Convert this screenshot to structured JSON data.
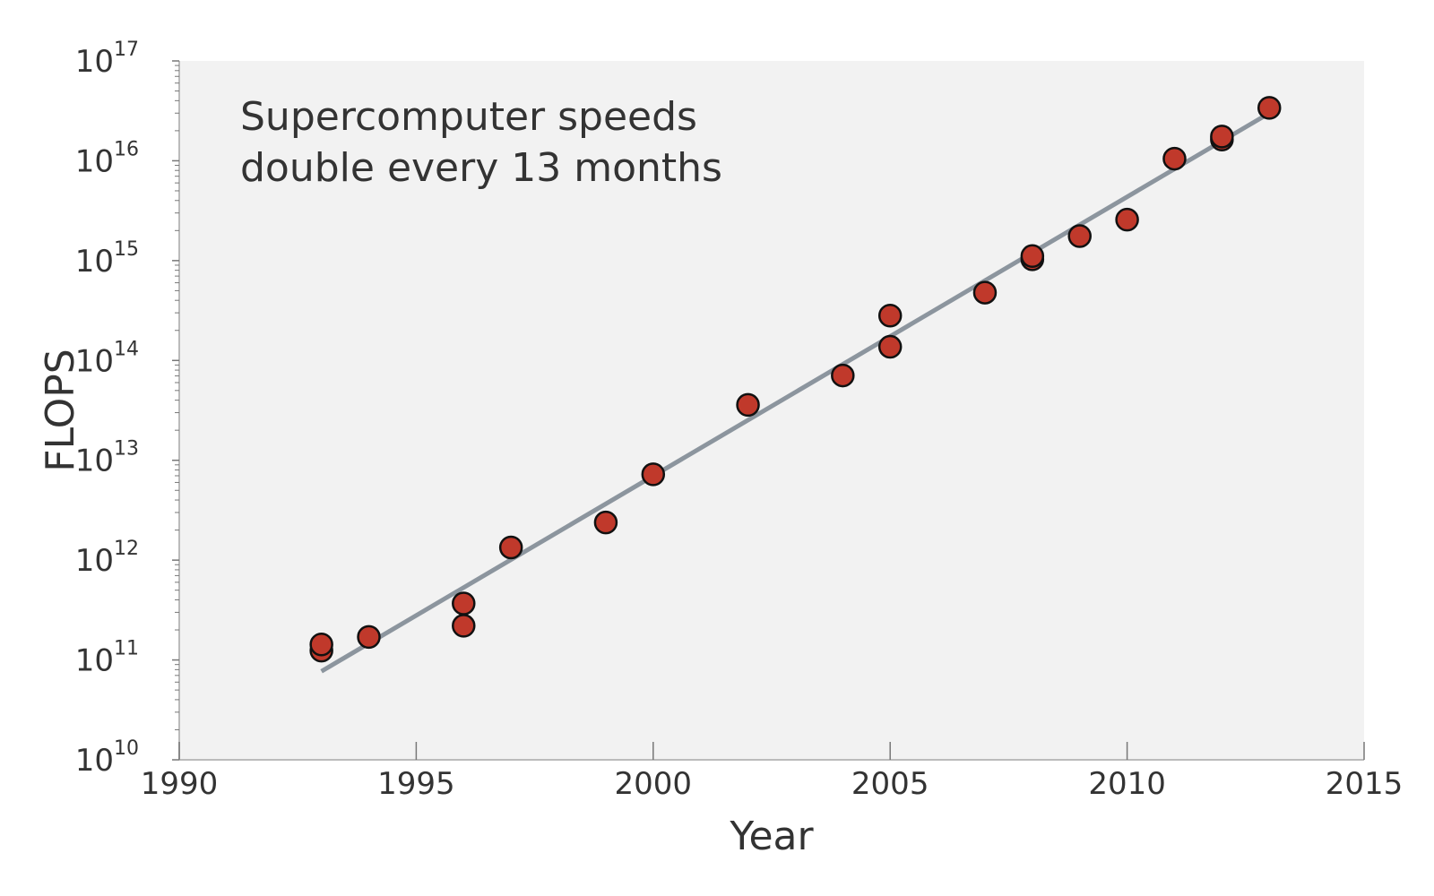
{
  "chart_data": {
    "type": "scatter",
    "annotation_lines": [
      "Supercomputer speeds",
      "double every 13 months"
    ],
    "xlabel": "Year",
    "ylabel": "FLOPS",
    "xlim": [
      1990,
      2015
    ],
    "ylim": [
      10000000000.0,
      1e+17
    ],
    "y_scale": "log",
    "grid": false,
    "x_ticks": [
      1990,
      1995,
      2000,
      2005,
      2010,
      2015
    ],
    "x_tick_labels": [
      "1990",
      "1995",
      "2000",
      "2005",
      "2010",
      "2015"
    ],
    "y_tick_base": "10",
    "y_tick_exponents": [
      10,
      11,
      12,
      13,
      14,
      15,
      16,
      17
    ],
    "y_tick_exponent_labels": [
      "10",
      "11",
      "12",
      "13",
      "14",
      "15",
      "16",
      "17"
    ],
    "points": [
      {
        "x": 1993,
        "y": 124000000000.0
      },
      {
        "x": 1993,
        "y": 143000000000.0
      },
      {
        "x": 1994,
        "y": 170000000000.0
      },
      {
        "x": 1996,
        "y": 220000000000.0
      },
      {
        "x": 1996,
        "y": 368000000000.0
      },
      {
        "x": 1997,
        "y": 1340000000000.0
      },
      {
        "x": 1999,
        "y": 2380000000000.0
      },
      {
        "x": 2000,
        "y": 7230000000000.0
      },
      {
        "x": 2002,
        "y": 35900000000000.0
      },
      {
        "x": 2004,
        "y": 70700000000000.0
      },
      {
        "x": 2005,
        "y": 137000000000000.0
      },
      {
        "x": 2005,
        "y": 281000000000000.0
      },
      {
        "x": 2007,
        "y": 478000000000000.0
      },
      {
        "x": 2008,
        "y": 1030000000000000.0
      },
      {
        "x": 2008,
        "y": 1110000000000000.0
      },
      {
        "x": 2009,
        "y": 1760000000000000.0
      },
      {
        "x": 2010,
        "y": 2570000000000000.0
      },
      {
        "x": 2011,
        "y": 1.05e+16
      },
      {
        "x": 2012,
        "y": 1.63e+16
      },
      {
        "x": 2012,
        "y": 1.75e+16
      },
      {
        "x": 2013,
        "y": 3.39e+16
      }
    ],
    "trend_line": {
      "x": [
        1993,
        2013
      ],
      "y": [
        77000000000.0,
        3e+16
      ]
    },
    "colors": {
      "plot_background": "#f2f2f2",
      "point_fill": "#c0392b",
      "point_stroke": "#111111",
      "trend_line": "#8c959e",
      "axis": "#bbbbbb",
      "tick": "#777777",
      "text": "#333333"
    }
  }
}
